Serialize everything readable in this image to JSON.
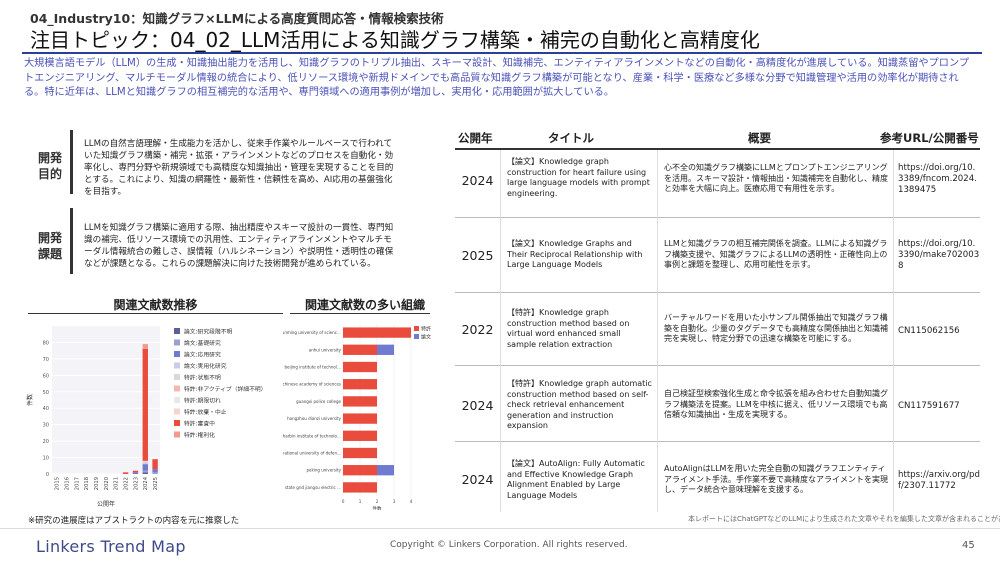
{
  "header": {
    "breadcrumb": "04_Industry10：知識グラフ×LLMによる高度質問応答・情報検索技術",
    "title": "注目トピック：04_02_LLM活用による知識グラフ構築・補完の自動化と高精度化",
    "intro": "大規模言語モデル（LLM）の生成・知識抽出能力を活用し、知識グラフのトリプル抽出、スキーマ設計、知識補完、エンティティアラインメントなどの自動化・高精度化が進展している。知識蒸留やプロンプトエンジニアリング、マルチモーダル情報の統合により、低リソース環境や新規ドメインでも高品質な知識グラフ構築が可能となり、産業・科学・医療など多様な分野で知識管理や活用の効率化が期待される。特に近年は、LLMと知識グラフの相互補完的な活用や、専門領域への適用事例が増加し、実用化・応用範囲が拡大している。"
  },
  "goal": {
    "label": "開発目的",
    "text": "LLMの自然言語理解・生成能力を活かし、従来手作業やルールベースで行われていた知識グラフ構築・補完・拡張・アラインメントなどのプロセスを自動化・効率化し、専門分野や新規領域でも高精度な知識抽出・管理を実現することを目的とする。これにより、知識の網羅性・最新性・信頼性を高め、AI応用の基盤強化を目指す。"
  },
  "issue": {
    "label": "開発課題",
    "text": "LLMを知識グラフ構築に適用する際、抽出精度やスキーマ設計の一貫性、専門知識の補完、低リソース環境での汎用性、エンティティアラインメントやマルチモーダル情報統合の難しさ、誤情報（ハルシネーション）や説明性・透明性の確保などが課題となる。これらの課題解決に向けた技術開発が進められている。"
  },
  "left_chart": {
    "heading": "関連文献数推移",
    "note": "※研究の進展度はアブストラクトの内容を元に推察した"
  },
  "right_chart": {
    "heading": "関連文献数の多い組織"
  },
  "chart_data": [
    {
      "type": "bar",
      "title": "関連文献数推移",
      "xlabel": "公開年",
      "ylabel": "件数",
      "categories": [
        "2015",
        "2016",
        "2017",
        "2018",
        "2019",
        "2020",
        "2021",
        "2022",
        "2023",
        "2024",
        "2025"
      ],
      "ylim": [
        0,
        90
      ],
      "yticks": [
        0,
        10,
        20,
        30,
        40,
        50,
        60,
        70,
        80
      ],
      "legend": [
        "論文:研究段階不明",
        "論文:基礎研究",
        "論文:応用研究",
        "論文:実用化研究",
        "特許:状態不明",
        "特許:非アクティブ（詳細不明）",
        "特許:期限切れ",
        "特許:放棄・中止",
        "特許:審査中",
        "特許:権利化"
      ],
      "legend_position": "right",
      "series": [
        {
          "name": "論文:研究段階不明",
          "color": "#5b5f97",
          "values": [
            0,
            0,
            0,
            0,
            0,
            0,
            0,
            0,
            0,
            1,
            0
          ]
        },
        {
          "name": "論文:基礎研究",
          "color": "#9aa0d0",
          "values": [
            0,
            0,
            0,
            0,
            0,
            0,
            0,
            0,
            0,
            1,
            1
          ]
        },
        {
          "name": "論文:応用研究",
          "color": "#6f7ad0",
          "values": [
            0,
            0,
            0,
            0,
            0,
            0,
            0,
            0,
            1,
            4,
            2
          ]
        },
        {
          "name": "論文:実用化研究",
          "color": "#c9cbe8",
          "values": [
            0,
            0,
            0,
            0,
            0,
            0,
            0,
            0,
            0,
            1,
            0
          ]
        },
        {
          "name": "特許:状態不明",
          "color": "#d9d9d9",
          "values": [
            0,
            0,
            0,
            0,
            0,
            0,
            0,
            0,
            0,
            0,
            0
          ]
        },
        {
          "name": "特許:非アクティブ（詳細不明）",
          "color": "#f4b8b0",
          "values": [
            0,
            0,
            0,
            0,
            0,
            0,
            0,
            0,
            0,
            0,
            0
          ]
        },
        {
          "name": "特許:期限切れ",
          "color": "#e8e8e8",
          "values": [
            0,
            0,
            0,
            0,
            0,
            0,
            0,
            0,
            0,
            0,
            0
          ]
        },
        {
          "name": "特許:放棄・中止",
          "color": "#f7d3cc",
          "values": [
            0,
            0,
            0,
            0,
            0,
            0,
            0,
            0,
            0,
            1,
            0
          ]
        },
        {
          "name": "特許:審査中",
          "color": "#e94b3c",
          "values": [
            0,
            0,
            0,
            0,
            0,
            0,
            0,
            1,
            1,
            68,
            6
          ]
        },
        {
          "name": "特許:権利化",
          "color": "#f29a8e",
          "values": [
            0,
            0,
            0,
            0,
            0,
            0,
            0,
            0,
            0,
            3,
            0
          ]
        }
      ]
    },
    {
      "type": "bar",
      "orientation": "horizontal",
      "title": "関連文献数の多い組織",
      "xlabel": "件数",
      "xlim": [
        0,
        4
      ],
      "xticks": [
        0,
        1,
        2,
        3,
        4
      ],
      "categories": [
        "kunming university of science and technology",
        "anhui university",
        "beijing institute of technology",
        "chinese academy of sciences",
        "guangxi police college",
        "hangzhou dianzi university",
        "harbin institute of technology",
        "national university of defense technology",
        "peking university",
        "state grid jiangsu electric power co ltd"
      ],
      "legend": [
        "特許",
        "論文"
      ],
      "legend_position": "top-right",
      "series": [
        {
          "name": "特許",
          "color": "#e94b3c",
          "values": [
            4,
            2,
            2,
            2,
            2,
            2,
            2,
            2,
            2,
            2
          ]
        },
        {
          "name": "論文",
          "color": "#6f7ad0",
          "values": [
            0,
            1,
            0,
            0,
            0,
            0,
            0,
            0,
            1,
            0
          ]
        }
      ]
    }
  ],
  "table": {
    "headers": {
      "year": "公開年",
      "title": "タイトル",
      "summary": "概要",
      "url": "参考URL/公開番号"
    },
    "rows": [
      {
        "year": "2024",
        "title": "【論文】Knowledge graph construction for heart failure using large language models with prompt engineering.",
        "summary": "心不全の知識グラフ構築にLLMとプロンプトエンジニアリングを活用。スキーマ設計・情報抽出・知識補完を自動化し、精度と効率を大幅に向上。医療応用で有用性を示す。",
        "url": "https://doi.org/10.3389/fncom.2024.1389475"
      },
      {
        "year": "2025",
        "title": "【論文】Knowledge Graphs and Their Reciprocal Relationship with Large Language Models",
        "summary": "LLMと知識グラフの相互補完関係を調査。LLMによる知識グラフ構築支援や、知識グラフによるLLMの透明性・正確性向上の事例と課題を整理し、応用可能性を示す。",
        "url": "https://doi.org/10.3390/make7020038"
      },
      {
        "year": "2022",
        "title": "【特許】Knowledge graph construction method based on virtual word enhanced small sample relation extraction",
        "summary": "バーチャルワードを用いた小サンプル関係抽出で知識グラフ構築を自動化。少量のタグデータでも高精度な関係抽出と知識補完を実現し、特定分野での迅速な構築を可能にする。",
        "url": "CN115062156"
      },
      {
        "year": "2024",
        "title": "【特許】Knowledge graph automatic construction method based on self-check retrieval enhancement generation and instruction expansion",
        "summary": "自己検証型検索強化生成と命令拡張を組み合わせた自動知識グラフ構築法を提案。LLMを中核に据え、低リソース環境でも高信頼な知識抽出・生成を実現する。",
        "url": "CN117591677"
      },
      {
        "year": "2024",
        "title": "【論文】AutoAlign: Fully Automatic and Effective Knowledge Graph Alignment Enabled by Large Language Models",
        "summary": "AutoAlignはLLMを用いた完全自動の知識グラフエンティティアライメント手法。手作業不要で高精度なアライメントを実現し、データ統合や意味理解を支援する。",
        "url": "https://arxiv.org/pdf/2307.11772"
      }
    ]
  },
  "footer": {
    "disclaimer": "本レポートにはChatGPTなどのLLMにより生成された文章やそれを編集した文章が含まれることがあります",
    "logo": "Linkers Trend Map",
    "copyright": "Copyright © Linkers Corporation. All rights reserved.",
    "page": "45"
  }
}
